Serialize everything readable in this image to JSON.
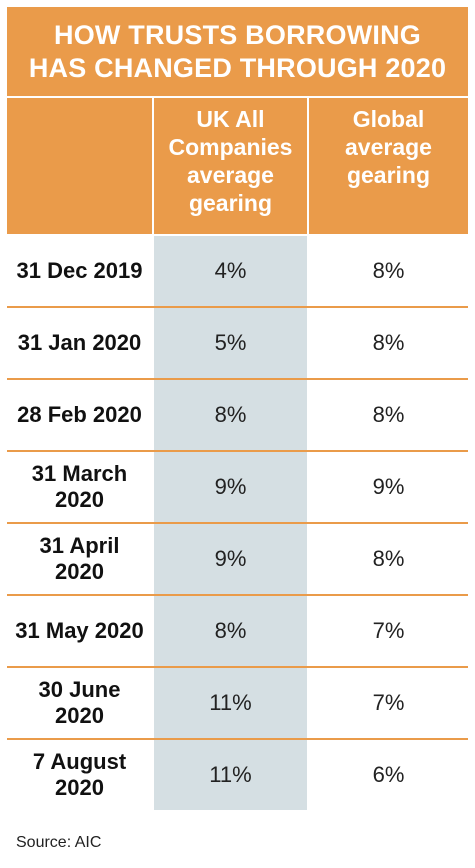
{
  "title": {
    "line1": "HOW TRUSTS BORROWING",
    "line2": "HAS CHANGED THROUGH 2020"
  },
  "colors": {
    "orange": "#ea9b4a",
    "uk_column_bg": "#d5dfe3"
  },
  "chart_data": {
    "type": "table",
    "title": "HOW TRUSTS BORROWING HAS CHANGED THROUGH 2020",
    "columns": [
      "",
      "UK All Companies average gearing",
      "Global average gearing"
    ],
    "rows": [
      {
        "date": "31 Dec 2019",
        "uk": "4%",
        "global": "8%"
      },
      {
        "date": "31 Jan 2020",
        "uk": "5%",
        "global": "8%"
      },
      {
        "date": "28 Feb 2020",
        "uk": "8%",
        "global": "8%"
      },
      {
        "date": "31 March 2020",
        "uk": "9%",
        "global": "9%"
      },
      {
        "date": "31 April 2020",
        "uk": "9%",
        "global": "8%"
      },
      {
        "date": "31 May 2020",
        "uk": "8%",
        "global": "7%"
      },
      {
        "date": "30 June 2020",
        "uk": "11%",
        "global": "7%"
      },
      {
        "date": "7 August 2020",
        "uk": "11%",
        "global": "6%"
      }
    ]
  },
  "source": "Source: AIC"
}
